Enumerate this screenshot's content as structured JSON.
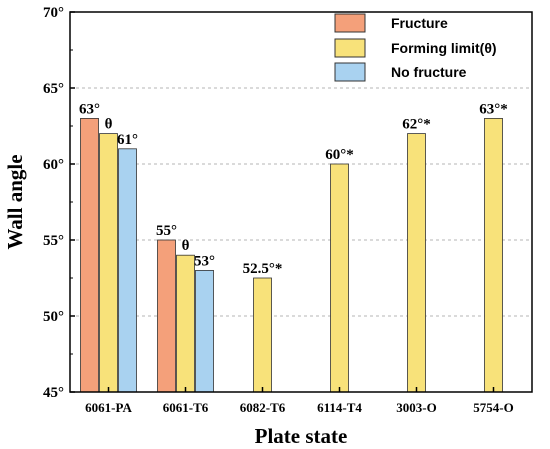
{
  "chart_data": {
    "type": "bar",
    "xlabel": "Plate state",
    "ylabel": "Wall angle",
    "ylim": [
      45,
      70
    ],
    "yticks": [
      45,
      50,
      55,
      60,
      65,
      70
    ],
    "ytick_labels": [
      "45°",
      "50°",
      "55°",
      "60°",
      "65°",
      "70°"
    ],
    "grid": "horizontal dashed",
    "legend_position": "top-right",
    "categories": [
      "6061-PA",
      "6061-T6",
      "6082-T6",
      "6114-T4",
      "3003-O",
      "5754-O"
    ],
    "series": [
      {
        "name": "Fructure",
        "color": "#F4A07A",
        "values": [
          63,
          55,
          null,
          null,
          null,
          null
        ],
        "labels": [
          "63°",
          "55°",
          "",
          "",
          "",
          ""
        ]
      },
      {
        "name": "Forming limit(θ)",
        "color": "#F8E27A",
        "values": [
          62,
          54,
          52.5,
          60,
          62,
          63
        ],
        "labels": [
          "θ",
          "θ",
          "52.5°*",
          "60°*",
          "62°*",
          "63°*"
        ]
      },
      {
        "name": "No fructure",
        "color": "#A9D2F0",
        "values": [
          61,
          53,
          null,
          null,
          null,
          null
        ],
        "labels": [
          "61°",
          "53°",
          "",
          "",
          "",
          ""
        ]
      }
    ]
  }
}
